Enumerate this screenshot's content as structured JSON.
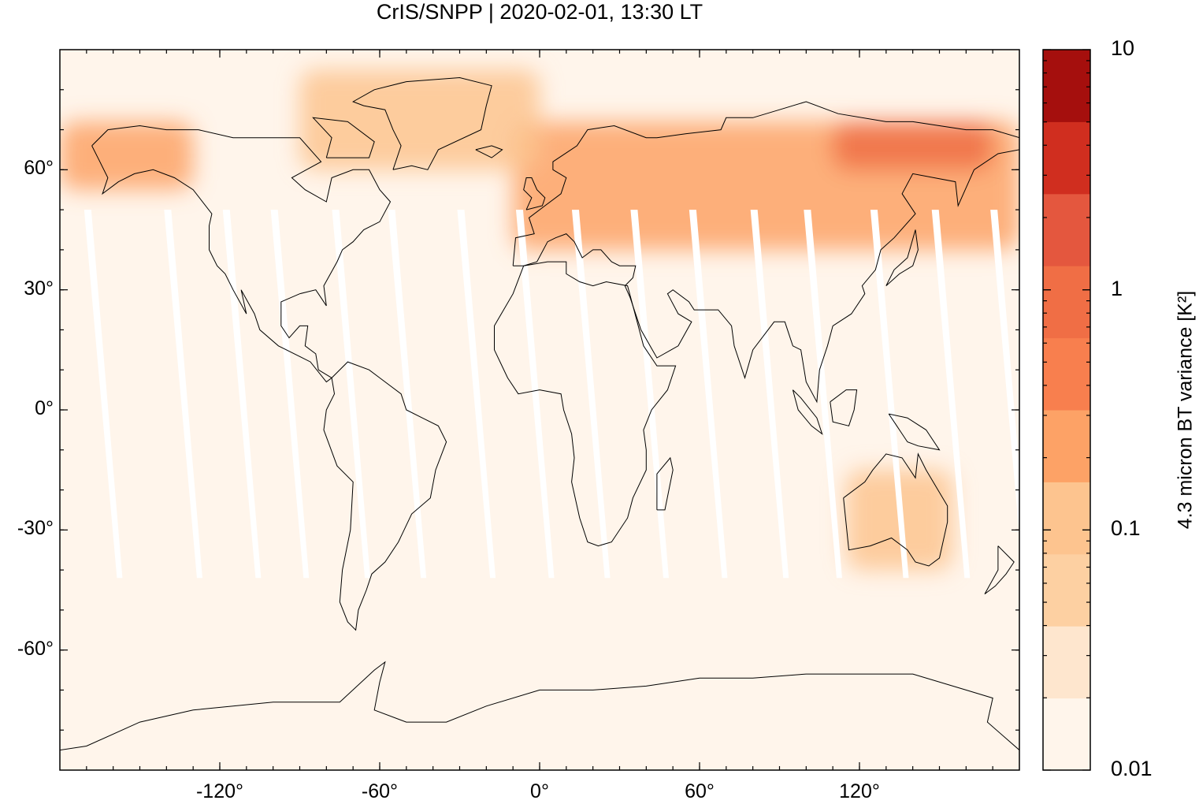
{
  "title": "CrIS/SNPP | 2020-02-01, 13:30 LT",
  "map": {
    "type": "global-map",
    "projection": "equirectangular",
    "lon_range": [
      -180,
      180
    ],
    "lat_range": [
      -90,
      90
    ],
    "background_color": "#fff5eb",
    "coastline_color": "#000000",
    "swath_gap_color": "#ffffff",
    "x_ticks": [
      {
        "value": -120,
        "label": "-120°"
      },
      {
        "value": -60,
        "label": "-60°"
      },
      {
        "value": 0,
        "label": "0°"
      },
      {
        "value": 60,
        "label": "60°"
      },
      {
        "value": 120,
        "label": "120°"
      }
    ],
    "y_ticks": [
      {
        "value": 60,
        "label": "60°"
      },
      {
        "value": 30,
        "label": "30°"
      },
      {
        "value": 0,
        "label": "0°"
      },
      {
        "value": -30,
        "label": "-30°"
      },
      {
        "value": -60,
        "label": "-60°"
      }
    ]
  },
  "colorbar": {
    "label": "4.3 micron BT variance [K²]",
    "scale": "log",
    "range": [
      0.01,
      10
    ],
    "tick_labels": [
      {
        "value": 10,
        "label": "10"
      },
      {
        "value": 1,
        "label": "1"
      },
      {
        "value": 0.1,
        "label": "0.1"
      },
      {
        "value": 0.01,
        "label": "0.01"
      }
    ],
    "colors": [
      "#fff5eb",
      "#fee6ce",
      "#fdd0a2",
      "#fdc48f",
      "#fda266",
      "#f87f4e",
      "#f06e45",
      "#e4573e",
      "#d02e1f",
      "#a50f0d"
    ]
  },
  "elevated_regions": [
    {
      "name": "northern-eurasia",
      "lon": [
        -10,
        180
      ],
      "lat": [
        40,
        72
      ],
      "level": 0.3
    },
    {
      "name": "eastern-siberia",
      "lon": [
        110,
        170
      ],
      "lat": [
        60,
        72
      ],
      "level": 1.0
    },
    {
      "name": "greenland-arctic",
      "lon": [
        -90,
        0
      ],
      "lat": [
        60,
        85
      ],
      "level": 0.15
    },
    {
      "name": "alaska",
      "lon": [
        -180,
        -130
      ],
      "lat": [
        55,
        72
      ],
      "level": 0.3
    },
    {
      "name": "australia",
      "lon": [
        115,
        155
      ],
      "lat": [
        -40,
        -15
      ],
      "level": 0.1
    }
  ]
}
